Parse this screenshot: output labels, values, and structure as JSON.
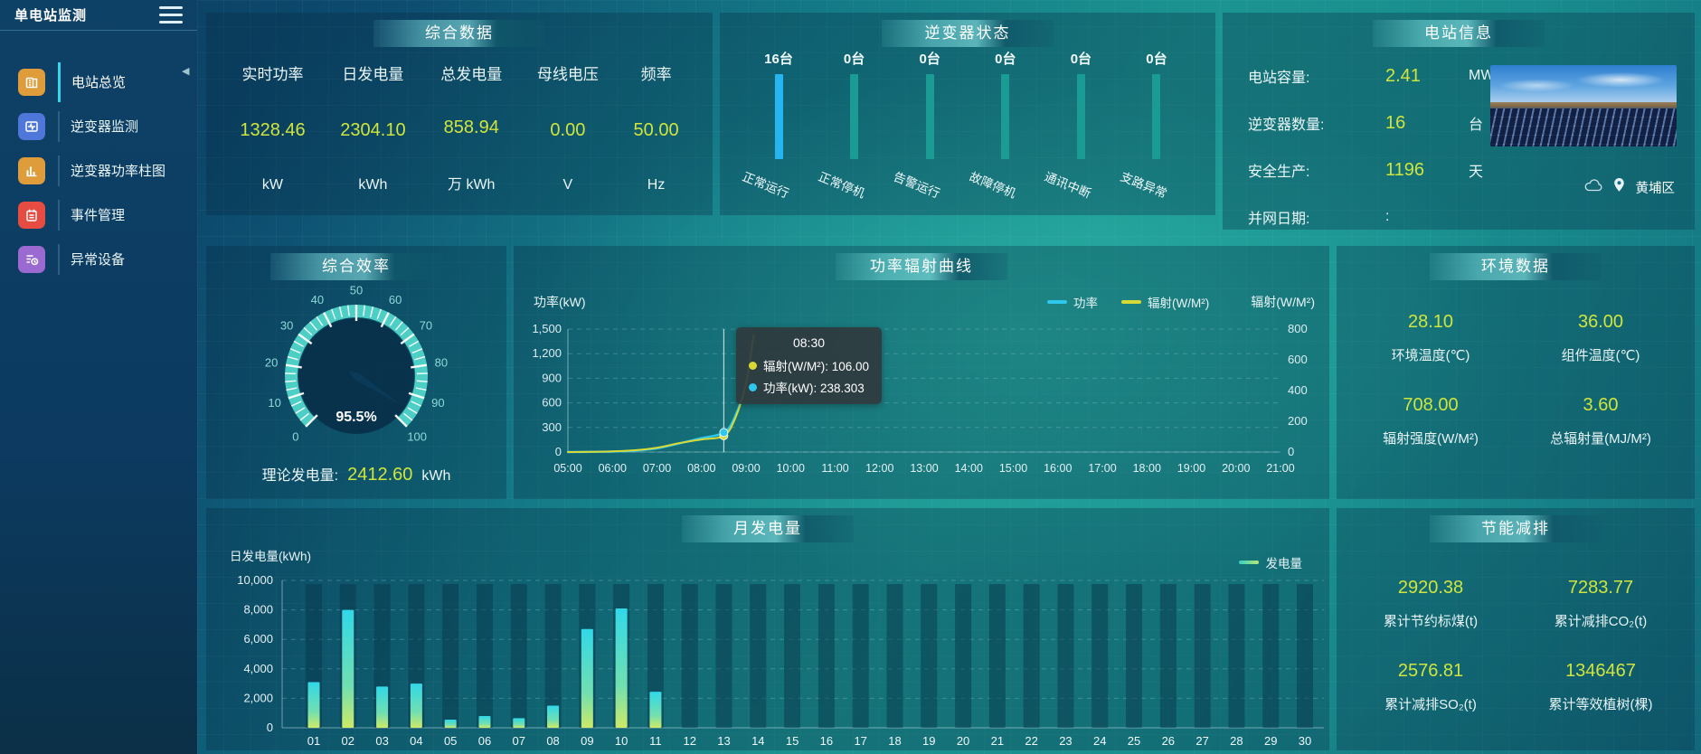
{
  "app": {
    "title": "单电站监测"
  },
  "colors": {
    "value_yellow": "#d0e53c",
    "power_line": "#2ec7ee",
    "radiation_line": "#d8d935",
    "active_status_bar": "#25b6f2",
    "inactive_status_bar": "#1a9b93",
    "gauge_ring": "#4ecfc6"
  },
  "sidebar": {
    "items": [
      {
        "label": "电站总览",
        "icon": "station-overview",
        "color": "#df9c3b",
        "active": true
      },
      {
        "label": "逆变器监测",
        "icon": "inverter-monitor",
        "color": "#4f76d9",
        "active": false
      },
      {
        "label": "逆变器功率柱图",
        "icon": "inverter-power-bars",
        "color": "#df9c3b",
        "active": false
      },
      {
        "label": "事件管理",
        "icon": "event-management",
        "color": "#e74c42",
        "active": false
      },
      {
        "label": "异常设备",
        "icon": "abnormal-devices",
        "color": "#9a6ad0",
        "active": false
      }
    ]
  },
  "panels": {
    "summary": {
      "title": "综合数据",
      "metrics": [
        {
          "label": "实时功率",
          "value": "1328.46",
          "unit": "kW"
        },
        {
          "label": "日发电量",
          "value": "2304.10",
          "unit": "kWh"
        },
        {
          "label": "总发电量",
          "value": "858.94",
          "unit": "万 kWh"
        },
        {
          "label": "母线电压",
          "value": "0.00",
          "unit": "V"
        },
        {
          "label": "频率",
          "value": "50.00",
          "unit": "Hz"
        }
      ]
    },
    "inverter_status": {
      "title": "逆变器状态",
      "bars": [
        {
          "count": "16台",
          "label": "正常运行",
          "highlight": true
        },
        {
          "count": "0台",
          "label": "正常停机",
          "highlight": false
        },
        {
          "count": "0台",
          "label": "告警运行",
          "highlight": false
        },
        {
          "count": "0台",
          "label": "故障停机",
          "highlight": false
        },
        {
          "count": "0台",
          "label": "通讯中断",
          "highlight": false
        },
        {
          "count": "0台",
          "label": "支路异常",
          "highlight": false
        }
      ]
    },
    "station_info": {
      "title": "电站信息",
      "rows": [
        {
          "label": "电站容量:",
          "value": "2.41",
          "unit": "MW"
        },
        {
          "label": "逆变器数量:",
          "value": "16",
          "unit": "台"
        },
        {
          "label": "安全生产:",
          "value": "1196",
          "unit": "天"
        },
        {
          "label": "并网日期:",
          "value": ":",
          "unit": ""
        }
      ],
      "location": "黄埔区"
    },
    "efficiency": {
      "title": "综合效率",
      "value_label": "95.5%",
      "footer_label": "理论发电量:",
      "footer_value": "2412.60",
      "footer_unit": "kWh"
    },
    "power_curve": {
      "title": "功率辐射曲线",
      "left_axis_label": "功率(kW)",
      "right_axis_label": "辐射(W/M²)"
    },
    "environment": {
      "title": "环境数据",
      "metrics": [
        {
          "value": "28.10",
          "label": "环境温度(℃)"
        },
        {
          "value": "36.00",
          "label": "组件温度(℃)"
        },
        {
          "value": "708.00",
          "label": "辐射强度(W/M²)"
        },
        {
          "value": "3.60",
          "label": "总辐射量(MJ/M²)"
        }
      ]
    },
    "monthly": {
      "title": "月发电量",
      "axis_label": "日发电量(kWh)",
      "legend": "发电量"
    },
    "energy_saving": {
      "title": "节能减排",
      "metrics": [
        {
          "value": "2920.38",
          "label": "累计节约标煤(t)"
        },
        {
          "value": "7283.77",
          "label": "累计减排CO₂(t)"
        },
        {
          "value": "2576.81",
          "label": "累计减排SO₂(t)"
        },
        {
          "value": "1346467",
          "label": "累计等效植树(棵)"
        }
      ]
    }
  },
  "chart_data": [
    {
      "type": "bar",
      "title": "逆变器状态",
      "categories": [
        "正常运行",
        "正常停机",
        "告警运行",
        "故障停机",
        "通讯中断",
        "支路异常"
      ],
      "values": [
        16,
        0,
        0,
        0,
        0,
        0
      ],
      "unit": "台"
    },
    {
      "type": "gauge",
      "title": "综合效率",
      "value": 95.5,
      "display": "95.5%",
      "min": 0,
      "max": 100,
      "tick_step": 10
    },
    {
      "type": "line",
      "title": "功率辐射曲线",
      "ylabel_left": "功率(kW)",
      "ylabel_right": "辐射(W/M²)",
      "ylim_left": [
        0,
        1500
      ],
      "ylim_right": [
        0,
        800
      ],
      "yticks_left": [
        "1,500",
        "1,200",
        "900",
        "600",
        "300",
        "0"
      ],
      "yticks_right": [
        "800",
        "600",
        "400",
        "200",
        "0"
      ],
      "x_range_hours": [
        5,
        21
      ],
      "x_ticks": [
        "05:00",
        "06:00",
        "07:00",
        "08:00",
        "09:00",
        "10:00",
        "11:00",
        "12:00",
        "13:00",
        "14:00",
        "15:00",
        "16:00",
        "17:00",
        "18:00",
        "19:00",
        "20:00",
        "21:00"
      ],
      "series": [
        {
          "name": "功率",
          "axis": "left",
          "color": "#2ec7ee",
          "points": [
            [
              5,
              0
            ],
            [
              5.5,
              2
            ],
            [
              6,
              6
            ],
            [
              6.5,
              18
            ],
            [
              7,
              45
            ],
            [
              7.5,
              105
            ],
            [
              8,
              170
            ],
            [
              8.5,
              238.3
            ],
            [
              8.75,
              430
            ],
            [
              9,
              840
            ],
            [
              9.17,
              1430
            ]
          ]
        },
        {
          "name": "辐射(W/M²)",
          "axis": "right",
          "color": "#d8d935",
          "points": [
            [
              5,
              0
            ],
            [
              5.5,
              1
            ],
            [
              6,
              4
            ],
            [
              6.5,
              12
            ],
            [
              7,
              28
            ],
            [
              7.5,
              58
            ],
            [
              8,
              82
            ],
            [
              8.5,
              106
            ],
            [
              8.75,
              215
            ],
            [
              9,
              445
            ],
            [
              9.17,
              760
            ]
          ]
        }
      ],
      "hover": {
        "x_hour": 8.5,
        "tooltip": {
          "time": "08:30",
          "lines": [
            {
              "color": "#d8d935",
              "text": "辐射(W/M²): 106.00",
              "value": 106.0
            },
            {
              "color": "#2ec7ee",
              "text": "功率(kW): 238.303",
              "value": 238.303
            }
          ]
        }
      }
    },
    {
      "type": "bar",
      "title": "月发电量",
      "ylabel": "日发电量(kWh)",
      "legend": "发电量",
      "ylim": [
        0,
        10000
      ],
      "yticks": [
        "10,000",
        "8,000",
        "6,000",
        "4,000",
        "2,000",
        "0"
      ],
      "categories": [
        "01",
        "02",
        "03",
        "04",
        "05",
        "06",
        "07",
        "08",
        "09",
        "10",
        "11",
        "12",
        "13",
        "14",
        "15",
        "16",
        "17",
        "18",
        "19",
        "20",
        "21",
        "22",
        "23",
        "24",
        "25",
        "26",
        "27",
        "28",
        "29",
        "30"
      ],
      "values": [
        3100,
        8000,
        2800,
        3000,
        550,
        800,
        650,
        1500,
        6700,
        8100,
        2450,
        0,
        0,
        0,
        0,
        0,
        0,
        0,
        0,
        0,
        0,
        0,
        0,
        0,
        0,
        0,
        0,
        0,
        0,
        0
      ]
    }
  ]
}
